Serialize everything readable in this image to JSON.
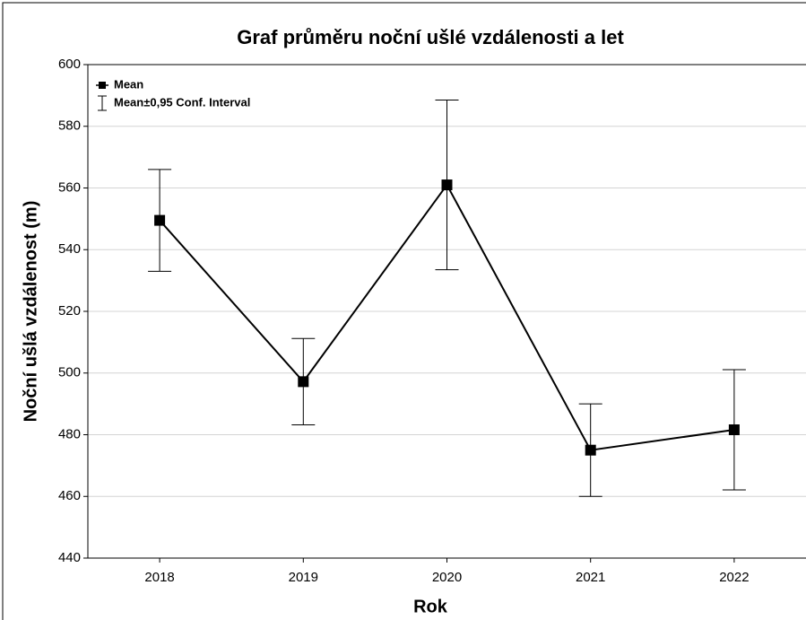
{
  "chart_data": {
    "type": "line",
    "title": "Graf průměru noční ušlé vzdálenosti a let",
    "x_label": "Rok",
    "y_label": "Noční ušlá vzdálenost (m)",
    "categories": [
      "2018",
      "2019",
      "2020",
      "2021",
      "2022"
    ],
    "series": [
      {
        "name": "Mean",
        "color": "#000000",
        "values": [
          549.5,
          497.2,
          561,
          475,
          481.6
        ],
        "errors": [
          16.5,
          14,
          27.5,
          15,
          19.5
        ],
        "error_name": "Mean±0,95 Conf. Interval"
      }
    ],
    "ylim": [
      440,
      600
    ],
    "yticks": [
      440,
      460,
      480,
      500,
      520,
      540,
      560,
      580,
      600
    ],
    "grid": true,
    "legend": "upper left"
  }
}
